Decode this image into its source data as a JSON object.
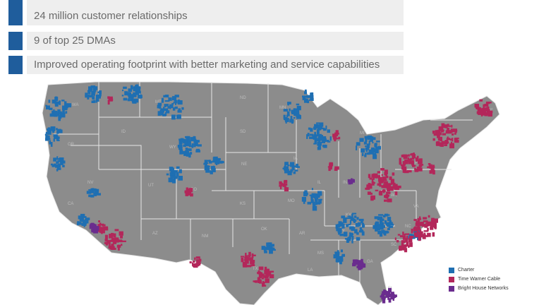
{
  "bullets": [
    "24 million customer relationships",
    "9 of top 25 DMAs",
    "Improved operating footprint with better marketing and service capabilities"
  ],
  "legend": [
    {
      "label": "Charter",
      "color": "#1f6fb2"
    },
    {
      "label": "Time Warner Cable",
      "color": "#b3275a"
    },
    {
      "label": "Bright House Networks",
      "color": "#6a2c8e"
    }
  ],
  "colors": {
    "land": "#8c8c8c",
    "border": "#e6e6e6",
    "bullet_square": "#1f5d9c",
    "bullet_bar": "#eeeeee"
  },
  "state_labels": [
    "WA",
    "MT",
    "ND",
    "MN",
    "ID",
    "OR",
    "SD",
    "WI",
    "MI",
    "WY",
    "IA",
    "NE",
    "NV",
    "UT",
    "CO",
    "IL",
    "IN",
    "OH",
    "PA",
    "NY",
    "ME",
    "CA",
    "KS",
    "MO",
    "KY",
    "WV",
    "VA",
    "AZ",
    "OK",
    "NM",
    "AR",
    "TN",
    "NC",
    "SC",
    "MS",
    "AL",
    "GA",
    "TX",
    "LA",
    "FL"
  ]
}
